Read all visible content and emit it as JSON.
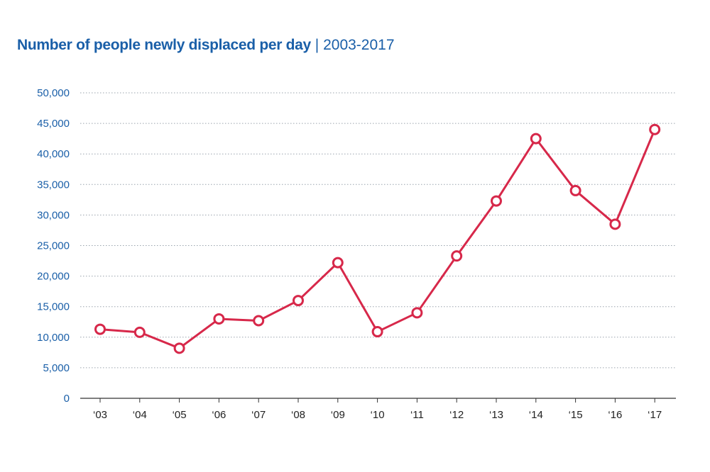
{
  "colors": {
    "title": "#1a5fa8",
    "axis_labels": "#1a5fa8",
    "x_labels": "#222222",
    "line": "#d7284a",
    "grid": "#9aa3ad",
    "baseline": "#333333"
  },
  "chart_data": {
    "type": "line",
    "title": "Number of people newly displaced per day",
    "title_separator": "|",
    "subtitle": "2003-2017",
    "xlabel": "",
    "ylabel": "",
    "categories": [
      "‘03",
      "‘04",
      "‘05",
      "‘06",
      "‘07",
      "‘08",
      "‘09",
      "‘10",
      "‘11",
      "‘12",
      "‘13",
      "‘14",
      "‘15",
      "‘16",
      "‘17"
    ],
    "series": [
      {
        "values": [
          11300,
          10800,
          8200,
          13000,
          12700,
          16000,
          22200,
          10900,
          14000,
          23300,
          32300,
          42500,
          34000,
          28500,
          44000
        ]
      }
    ],
    "ylim": [
      0,
      50000
    ],
    "yticks": [
      0,
      5000,
      10000,
      15000,
      20000,
      25000,
      30000,
      35000,
      40000,
      45000,
      50000
    ],
    "ytick_labels": [
      "0",
      "5,000",
      "10,000",
      "15,000",
      "20,000",
      "25,000",
      "30,000",
      "35,000",
      "40,000",
      "45,000",
      "50,000"
    ],
    "grid": "horizontal dotted",
    "legend": "none",
    "markers": "hollow circles"
  }
}
